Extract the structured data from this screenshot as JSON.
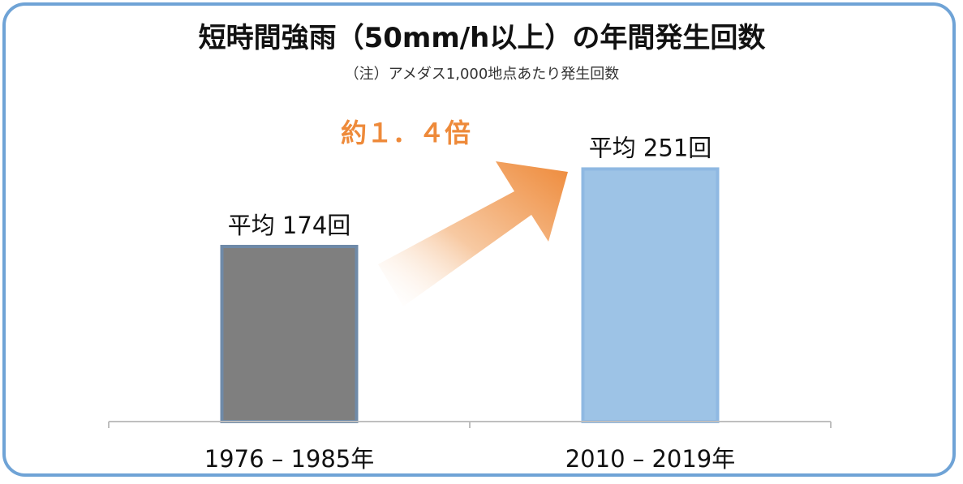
{
  "chart_data": {
    "type": "bar",
    "title": "短時間強雨（50mm/h以上）の年間発生回数",
    "subtitle": "（注）アメダス1,000地点あたり発生回数",
    "categories": [
      "1976 – 1985年",
      "2010 – 2019年"
    ],
    "values": [
      174,
      251
    ],
    "value_labels": [
      "平均 174回",
      "平均 251回"
    ],
    "ylim": [
      0,
      300
    ],
    "grid": false,
    "annotation": "約１．４倍",
    "bar_colors": [
      "#7f7f7f",
      "#9dc3e6"
    ],
    "bar_edge_colors": [
      "#6f8aa8",
      "#8fb8e2"
    ],
    "arrow_color": "#ee8a3a"
  },
  "colors": {
    "frame_border": "#6fa3d6",
    "axis": "#bfbfbf"
  }
}
